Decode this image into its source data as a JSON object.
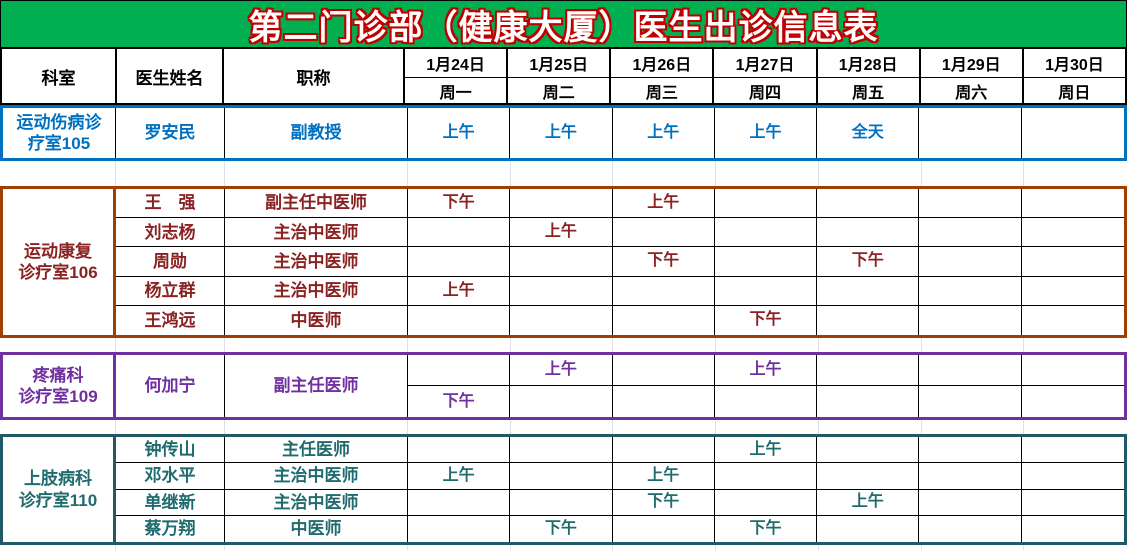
{
  "title": "第二门诊部（健康大厦）医生出诊信息表",
  "title_colors": {
    "background": "#00b050",
    "text_fill": "#ffffff",
    "text_outline": "#c00000"
  },
  "header": {
    "dept": "科室",
    "doctor": "医生姓名",
    "job_title": "职称"
  },
  "dates": [
    {
      "date": "1月24日",
      "day": "周一"
    },
    {
      "date": "1月25日",
      "day": "周二"
    },
    {
      "date": "1月26日",
      "day": "周三"
    },
    {
      "date": "1月27日",
      "day": "周四"
    },
    {
      "date": "1月28日",
      "day": "周五"
    },
    {
      "date": "1月29日",
      "day": "周六"
    },
    {
      "date": "1月30日",
      "day": "周日"
    }
  ],
  "sections": [
    {
      "dept": "运动伤病诊\n疗室105",
      "border_color": "#0070c0",
      "text_color": "#0070c0",
      "rows": [
        {
          "doctor": "罗安民",
          "title": "副教授",
          "slots": [
            "上午",
            "上午",
            "上午",
            "上午",
            "全天",
            "",
            ""
          ]
        }
      ]
    },
    {
      "dept": "运动康复\n诊疗室106",
      "border_color": "#a04000",
      "text_color": "#8b2222",
      "rows": [
        {
          "doctor": "王　强",
          "title": "副主任中医师",
          "slots": [
            "下午",
            "",
            "上午",
            "",
            "",
            "",
            ""
          ]
        },
        {
          "doctor": "刘志杨",
          "title": "主治中医师",
          "slots": [
            "",
            "上午",
            "",
            "",
            "",
            "",
            ""
          ]
        },
        {
          "doctor": "周勋",
          "title": "主治中医师",
          "slots": [
            "",
            "",
            "下午",
            "",
            "下午",
            "",
            ""
          ]
        },
        {
          "doctor": "杨立群",
          "title": "主治中医师",
          "slots": [
            "上午",
            "",
            "",
            "",
            "",
            "",
            ""
          ]
        },
        {
          "doctor": "王鸿远",
          "title": "中医师",
          "slots": [
            "",
            "",
            "",
            "下午",
            "",
            "",
            ""
          ]
        }
      ]
    },
    {
      "dept": "疼痛科\n诊疗室109",
      "border_color": "#7030a0",
      "text_color": "#7030a0",
      "split": true,
      "rows": [
        {
          "doctor": "何加宁",
          "title": "副主任医师",
          "slots_top": [
            "",
            "上午",
            "",
            "上午",
            "",
            "",
            ""
          ],
          "slots_bottom": [
            "下午",
            "",
            "",
            "",
            "",
            "",
            ""
          ]
        }
      ]
    },
    {
      "dept": "上肢病科\n诊疗室110",
      "border_color": "#215968",
      "text_color": "#1f6b6e",
      "rows": [
        {
          "doctor": "钟传山",
          "title": "主任医师",
          "slots": [
            "",
            "",
            "",
            "上午",
            "",
            "",
            ""
          ]
        },
        {
          "doctor": "邓水平",
          "title": "主治中医师",
          "slots": [
            "上午",
            "",
            "上午",
            "",
            "",
            "",
            ""
          ]
        },
        {
          "doctor": "单继新",
          "title": "主治中医师",
          "slots": [
            "",
            "",
            "下午",
            "",
            "上午",
            "",
            ""
          ]
        },
        {
          "doctor": "蔡万翔",
          "title": "中医师",
          "slots": [
            "",
            "下午",
            "",
            "下午",
            "",
            "",
            ""
          ]
        }
      ]
    }
  ]
}
